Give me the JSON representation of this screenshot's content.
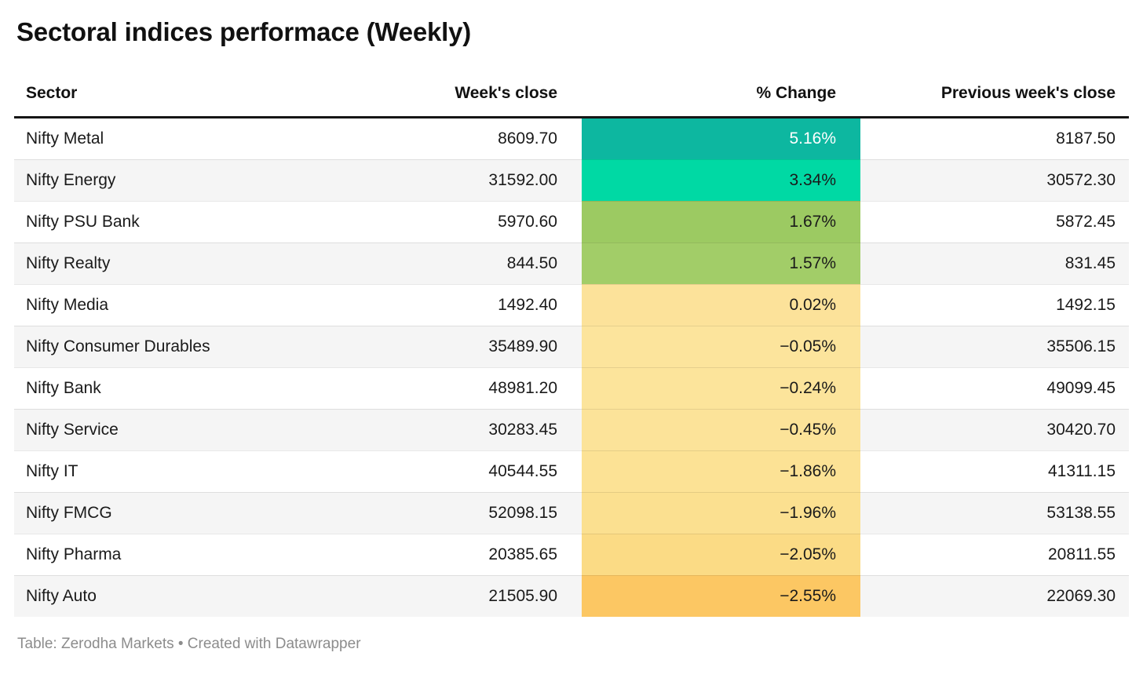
{
  "title": "Sectoral indices performace (Weekly)",
  "columns": {
    "sector": "Sector",
    "close": "Week's close",
    "change": "% Change",
    "prev": "Previous week's close"
  },
  "rows": [
    {
      "sector": "Nifty Metal",
      "close": "8609.70",
      "change": "5.16%",
      "prev": "8187.50",
      "color": "#0db7a0",
      "text_color": "#ffffff"
    },
    {
      "sector": "Nifty Energy",
      "close": "31592.00",
      "change": "3.34%",
      "prev": "30572.30",
      "color": "#00d9a4",
      "text_color": "#1a1a1a"
    },
    {
      "sector": "Nifty PSU Bank",
      "close": "5970.60",
      "change": "1.67%",
      "prev": "5872.45",
      "color": "#9cca62",
      "text_color": "#1a1a1a"
    },
    {
      "sector": "Nifty Realty",
      "close": "844.50",
      "change": "1.57%",
      "prev": "831.45",
      "color": "#a2cd68",
      "text_color": "#1a1a1a"
    },
    {
      "sector": "Nifty Media",
      "close": "1492.40",
      "change": "0.02%",
      "prev": "1492.15",
      "color": "#fce29a",
      "text_color": "#1a1a1a"
    },
    {
      "sector": "Nifty Consumer Durables",
      "close": "35489.90",
      "change": "−0.05%",
      "prev": "35506.15",
      "color": "#fce49c",
      "text_color": "#1a1a1a"
    },
    {
      "sector": "Nifty Bank",
      "close": "48981.20",
      "change": "−0.24%",
      "prev": "49099.45",
      "color": "#fce49b",
      "text_color": "#1a1a1a"
    },
    {
      "sector": "Nifty Service",
      "close": "30283.45",
      "change": "−0.45%",
      "prev": "30420.70",
      "color": "#fce399",
      "text_color": "#1a1a1a"
    },
    {
      "sector": "Nifty IT",
      "close": "40544.55",
      "change": "−1.86%",
      "prev": "41311.15",
      "color": "#fce295",
      "text_color": "#1a1a1a"
    },
    {
      "sector": "Nifty FMCG",
      "close": "52098.15",
      "change": "−1.96%",
      "prev": "53138.55",
      "color": "#fbe090",
      "text_color": "#1a1a1a"
    },
    {
      "sector": "Nifty Pharma",
      "close": "20385.65",
      "change": "−2.05%",
      "prev": "20811.55",
      "color": "#fbdb85",
      "text_color": "#1a1a1a"
    },
    {
      "sector": "Nifty Auto",
      "close": "21505.90",
      "change": "−2.55%",
      "prev": "22069.30",
      "color": "#fcc763",
      "text_color": "#1a1a1a"
    }
  ],
  "footer": "Table: Zerodha Markets • Created with Datawrapper",
  "chart_data": {
    "type": "table",
    "title": "Sectoral indices performace (Weekly)",
    "columns": [
      "Sector",
      "Week's close",
      "% Change",
      "Previous week's close"
    ],
    "rows": [
      [
        "Nifty Metal",
        8609.7,
        5.16,
        8187.5
      ],
      [
        "Nifty Energy",
        31592.0,
        3.34,
        30572.3
      ],
      [
        "Nifty PSU Bank",
        5970.6,
        1.67,
        5872.45
      ],
      [
        "Nifty Realty",
        844.5,
        1.57,
        831.45
      ],
      [
        "Nifty Media",
        1492.4,
        0.02,
        1492.15
      ],
      [
        "Nifty Consumer Durables",
        35489.9,
        -0.05,
        35506.15
      ],
      [
        "Nifty Bank",
        48981.2,
        -0.24,
        49099.45
      ],
      [
        "Nifty Service",
        30283.45,
        -0.45,
        30420.7
      ],
      [
        "Nifty IT",
        40544.55,
        -1.86,
        41311.15
      ],
      [
        "Nifty FMCG",
        52098.15,
        -1.96,
        53138.55
      ],
      [
        "Nifty Pharma",
        20385.65,
        -2.05,
        20811.55
      ],
      [
        "Nifty Auto",
        21505.9,
        -2.55,
        22069.3
      ]
    ],
    "heatmap_column": "% Change",
    "heatmap_scale": [
      "#0db7a0",
      "#00d9a4",
      "#9cca62",
      "#fce29a",
      "#fcc763"
    ],
    "zebra_row_color": "#f5f5f5",
    "source_note": "Table: Zerodha Markets • Created with Datawrapper"
  }
}
